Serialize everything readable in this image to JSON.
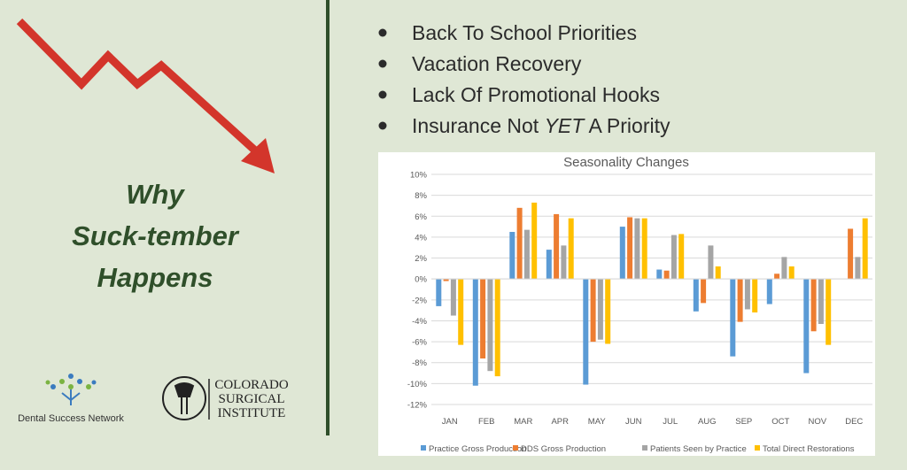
{
  "slide": {
    "heading_lines": [
      "Why",
      "Suck-tember",
      "Happens"
    ],
    "bullets": [
      "Back To School Priorities",
      "Vacation Recovery",
      "Lack Of Promotional Hooks",
      [
        "Insurance Not",
        "YET",
        "A Priority"
      ]
    ],
    "logos": {
      "left": "Dental Success Network",
      "right_lines": [
        "COLORADO",
        "SURGICAL",
        "INSTITUTE"
      ]
    }
  },
  "chart_data": {
    "type": "bar",
    "title": "Seasonality Changes",
    "categories": [
      "JAN",
      "FEB",
      "MAR",
      "APR",
      "MAY",
      "JUN",
      "JUL",
      "AUG",
      "SEP",
      "OCT",
      "NOV",
      "DEC"
    ],
    "series": [
      {
        "name": "Practice Gross Production",
        "color": "#5b9bd5",
        "values": [
          -2.6,
          -10.2,
          4.5,
          2.8,
          -10.1,
          5.0,
          0.9,
          -3.1,
          -7.4,
          -2.4,
          -9.0,
          null
        ]
      },
      {
        "name": "DDS Gross Production",
        "color": "#ed7d31",
        "values": [
          -0.2,
          -7.6,
          6.8,
          6.2,
          -6.0,
          5.9,
          0.8,
          -2.3,
          -4.1,
          0.5,
          -5.0,
          4.8
        ]
      },
      {
        "name": "Patients Seen by Practice",
        "color": "#a5a5a5",
        "values": [
          -3.5,
          -8.8,
          4.7,
          3.2,
          -5.8,
          5.8,
          4.2,
          3.2,
          -2.9,
          2.1,
          -4.3,
          2.1
        ]
      },
      {
        "name": "Total Direct Restorations",
        "color": "#ffc000",
        "values": [
          -6.3,
          -9.3,
          7.3,
          5.8,
          -6.2,
          5.8,
          4.3,
          1.2,
          -3.2,
          1.2,
          -6.3,
          5.8
        ]
      }
    ],
    "ylim": [
      -12,
      10
    ],
    "yticks": [
      {
        "value": -12,
        "label": "-12%"
      },
      {
        "value": -10,
        "label": "-10%"
      },
      {
        "value": -8,
        "label": "-8%"
      },
      {
        "value": -6,
        "label": "-6%"
      },
      {
        "value": -4,
        "label": "-4%"
      },
      {
        "value": -2,
        "label": "-2%"
      },
      {
        "value": 0,
        "label": "0%"
      },
      {
        "value": 2,
        "label": "2%"
      },
      {
        "value": 4,
        "label": "4%"
      },
      {
        "value": 6,
        "label": "6%"
      },
      {
        "value": 8,
        "label": "8%"
      },
      {
        "value": 10,
        "label": "10%"
      }
    ],
    "grid": true,
    "legend": "bottom"
  }
}
